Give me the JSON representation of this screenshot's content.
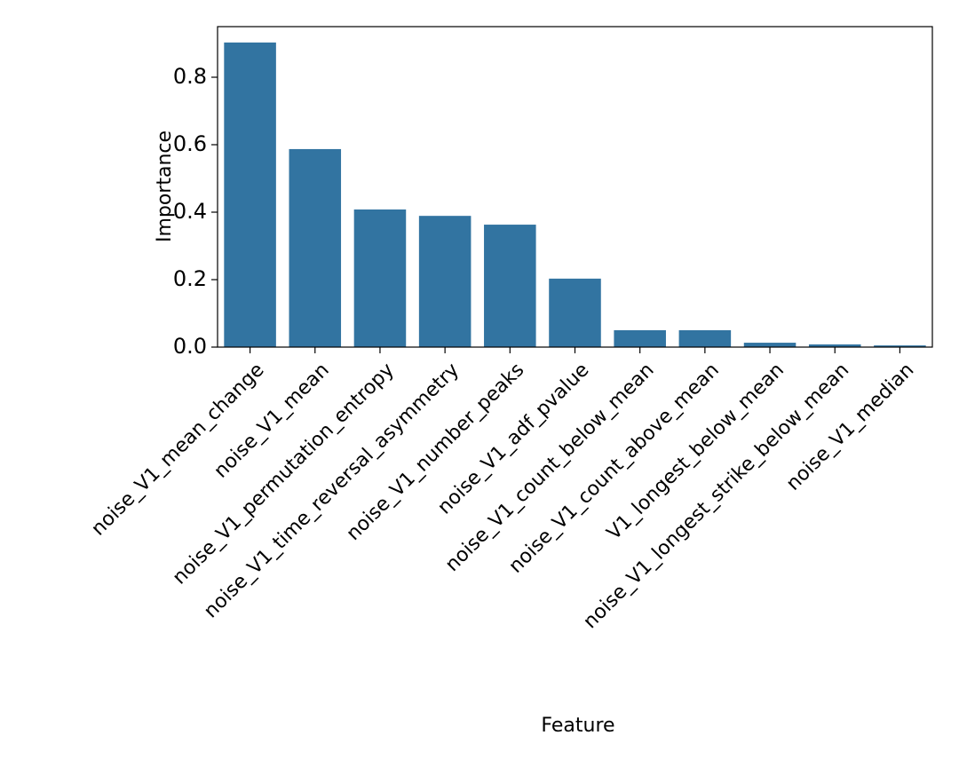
{
  "chart_data": {
    "type": "bar",
    "x_label": "Feature",
    "y_label": "Importance",
    "categories": [
      "noise_V1_mean_change",
      "noise_V1_mean",
      "noise_V1_permutation_entropy",
      "noise_V1_time_reversal_asymmetry",
      "noise_V1_number_peaks",
      "noise_V1_adf_pvalue",
      "noise_V1_count_below_mean",
      "noise_V1_count_above_mean",
      "V1_longest_below_mean",
      "noise_V1_longest_strike_below_mean",
      "noise_V1_median"
    ],
    "values": [
      0.903,
      0.587,
      0.408,
      0.389,
      0.363,
      0.203,
      0.05,
      0.05,
      0.013,
      0.008,
      0.005
    ],
    "color": "#3274a1",
    "ylim": [
      0,
      0.95
    ],
    "yticks": [
      {
        "value": 0,
        "label": "0.0"
      },
      0.2,
      0.4,
      0.6,
      0.8
    ]
  }
}
